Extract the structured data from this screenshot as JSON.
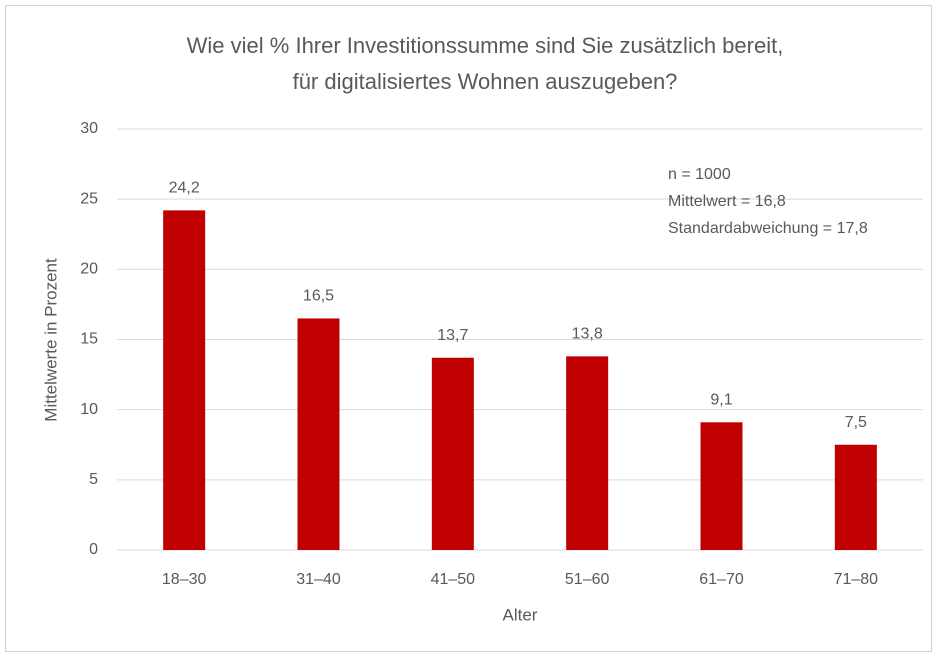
{
  "chart_data": {
    "type": "bar",
    "title": [
      "Wie viel % Ihrer Investitionssumme sind Sie zusätzlich bereit,",
      "für digitalisiertes Wohnen auszugeben?"
    ],
    "annotations": [
      "n = 1000",
      "Mittelwert = 16,8",
      "Standardabweichung = 17,8"
    ],
    "x_label": "Alter",
    "y_label": "Mittelwerte in Prozent",
    "categories": [
      "18–30",
      "31–40",
      "41–50",
      "51–60",
      "61–70",
      "71–80"
    ],
    "values": [
      24.2,
      16.5,
      13.7,
      13.8,
      9.1,
      7.5
    ],
    "value_labels": [
      "24,2",
      "16,5",
      "13,7",
      "13,8",
      "9,1",
      "7,5"
    ],
    "color": "#c00000",
    "ylim": [
      0,
      30
    ],
    "yticks": [
      0,
      5,
      10,
      15,
      20,
      25,
      30
    ],
    "grid": true
  }
}
